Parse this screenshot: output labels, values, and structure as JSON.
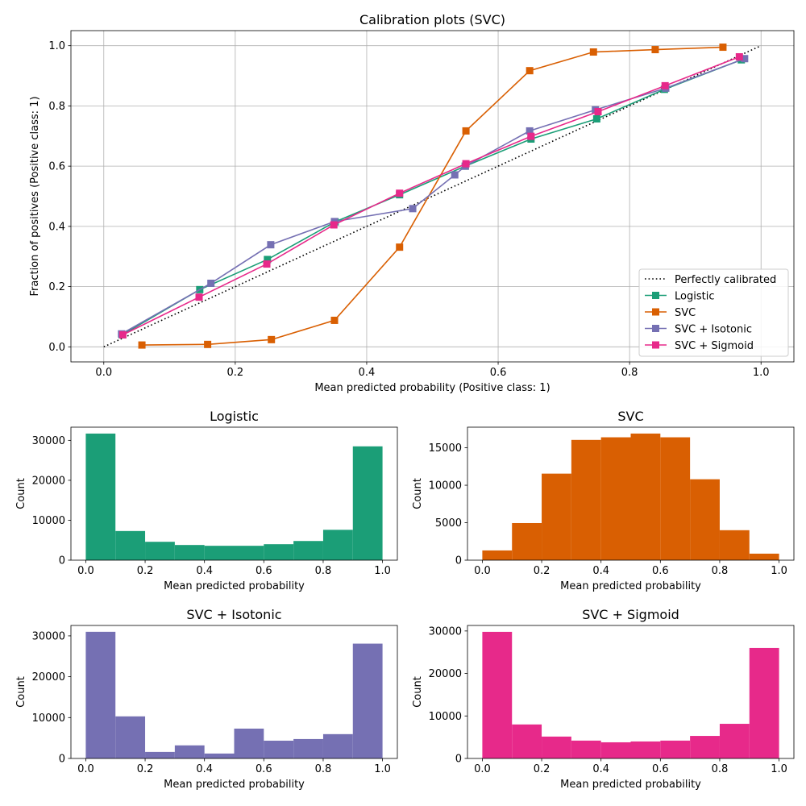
{
  "chart_data": [
    {
      "type": "line",
      "title": "Calibration plots (SVC)",
      "xlabel": "Mean predicted probability (Positive class: 1)",
      "ylabel": "Fraction of positives (Positive class: 1)",
      "xlim": [
        -0.05,
        1.05
      ],
      "ylim": [
        -0.05,
        1.05
      ],
      "xticks": [
        "0.0",
        "0.2",
        "0.4",
        "0.6",
        "0.8",
        "1.0"
      ],
      "yticks": [
        "0.0",
        "0.2",
        "0.4",
        "0.6",
        "0.8",
        "1.0"
      ],
      "grid": true,
      "legend_position": "lower-right",
      "reference": {
        "name": "Perfectly calibrated",
        "x": [
          0,
          1
        ],
        "y": [
          0,
          1
        ],
        "color": "#000000",
        "style": "dotted"
      },
      "series": [
        {
          "name": "Logistic",
          "color": "#1b9e77",
          "x": [
            0.028,
            0.146,
            0.249,
            0.352,
            0.45,
            0.55,
            0.65,
            0.75,
            0.853,
            0.97
          ],
          "y": [
            0.04,
            0.19,
            0.29,
            0.415,
            0.505,
            0.6,
            0.69,
            0.757,
            0.855,
            0.953
          ]
        },
        {
          "name": "SVC",
          "color": "#d95f02",
          "x": [
            0.058,
            0.158,
            0.255,
            0.351,
            0.45,
            0.551,
            0.648,
            0.745,
            0.839,
            0.942
          ],
          "y": [
            0.006,
            0.008,
            0.024,
            0.088,
            0.331,
            0.717,
            0.917,
            0.979,
            0.987,
            0.995
          ]
        },
        {
          "name": "SVC + Isotonic",
          "color": "#7570b3",
          "x": [
            0.027,
            0.163,
            0.254,
            0.351,
            0.47,
            0.534,
            0.55,
            0.648,
            0.748,
            0.855,
            0.975
          ],
          "y": [
            0.043,
            0.211,
            0.339,
            0.416,
            0.459,
            0.571,
            0.6,
            0.717,
            0.787,
            0.859,
            0.957
          ]
        },
        {
          "name": "SVC + Sigmoid",
          "color": "#e7298a",
          "x": [
            0.029,
            0.145,
            0.248,
            0.35,
            0.45,
            0.551,
            0.65,
            0.752,
            0.854,
            0.967
          ],
          "y": [
            0.04,
            0.165,
            0.275,
            0.405,
            0.51,
            0.608,
            0.699,
            0.781,
            0.867,
            0.963
          ]
        }
      ]
    },
    {
      "type": "bar",
      "title": "Logistic",
      "xlabel": "Mean predicted probability",
      "ylabel": "Count",
      "color": "#1b9e77",
      "bin_edges": [
        0,
        0.1,
        0.2,
        0.3,
        0.4,
        0.5,
        0.6,
        0.7,
        0.8,
        0.9,
        1.0
      ],
      "values": [
        31700,
        7300,
        4600,
        3800,
        3600,
        3600,
        4000,
        4800,
        7600,
        28500
      ],
      "xticks": [
        "0.0",
        "0.2",
        "0.4",
        "0.6",
        "0.8",
        "1.0"
      ],
      "yticks": [
        "0",
        "10000",
        "20000",
        "30000"
      ],
      "xlim": [
        -0.05,
        1.05
      ],
      "ylim": [
        0,
        33300
      ]
    },
    {
      "type": "bar",
      "title": "SVC",
      "xlabel": "Mean predicted probability",
      "ylabel": "Count",
      "color": "#d95f02",
      "bin_edges": [
        0,
        0.1,
        0.2,
        0.3,
        0.4,
        0.5,
        0.6,
        0.7,
        0.8,
        0.9,
        1.0
      ],
      "values": [
        1300,
        4950,
        11550,
        16050,
        16400,
        16900,
        16400,
        10800,
        4000,
        870
      ],
      "xticks": [
        "0.0",
        "0.2",
        "0.4",
        "0.6",
        "0.8",
        "1.0"
      ],
      "yticks": [
        "0",
        "5000",
        "10000",
        "15000"
      ],
      "xlim": [
        -0.05,
        1.05
      ],
      "ylim": [
        0,
        17750
      ]
    },
    {
      "type": "bar",
      "title": "SVC + Isotonic",
      "xlabel": "Mean predicted probability",
      "ylabel": "Count",
      "color": "#7570b3",
      "bin_edges": [
        0,
        0.1,
        0.2,
        0.3,
        0.4,
        0.5,
        0.6,
        0.7,
        0.8,
        0.9,
        1.0
      ],
      "values": [
        31000,
        10300,
        1600,
        3200,
        1200,
        7300,
        4350,
        4750,
        5950,
        28100
      ],
      "xticks": [
        "0.0",
        "0.2",
        "0.4",
        "0.6",
        "0.8",
        "1.0"
      ],
      "yticks": [
        "0",
        "10000",
        "20000",
        "30000"
      ],
      "xlim": [
        -0.05,
        1.05
      ],
      "ylim": [
        0,
        32550
      ]
    },
    {
      "type": "bar",
      "title": "SVC + Sigmoid",
      "xlabel": "Mean predicted probability",
      "ylabel": "Count",
      "color": "#e7298a",
      "bin_edges": [
        0,
        0.1,
        0.2,
        0.3,
        0.4,
        0.5,
        0.6,
        0.7,
        0.8,
        0.9,
        1.0
      ],
      "values": [
        29800,
        8000,
        5150,
        4200,
        3800,
        4000,
        4200,
        5300,
        8150,
        26000
      ],
      "xticks": [
        "0.0",
        "0.2",
        "0.4",
        "0.6",
        "0.8",
        "1.0"
      ],
      "yticks": [
        "0",
        "10000",
        "20000",
        "30000"
      ],
      "xlim": [
        -0.05,
        1.05
      ],
      "ylim": [
        0,
        31300
      ]
    }
  ]
}
